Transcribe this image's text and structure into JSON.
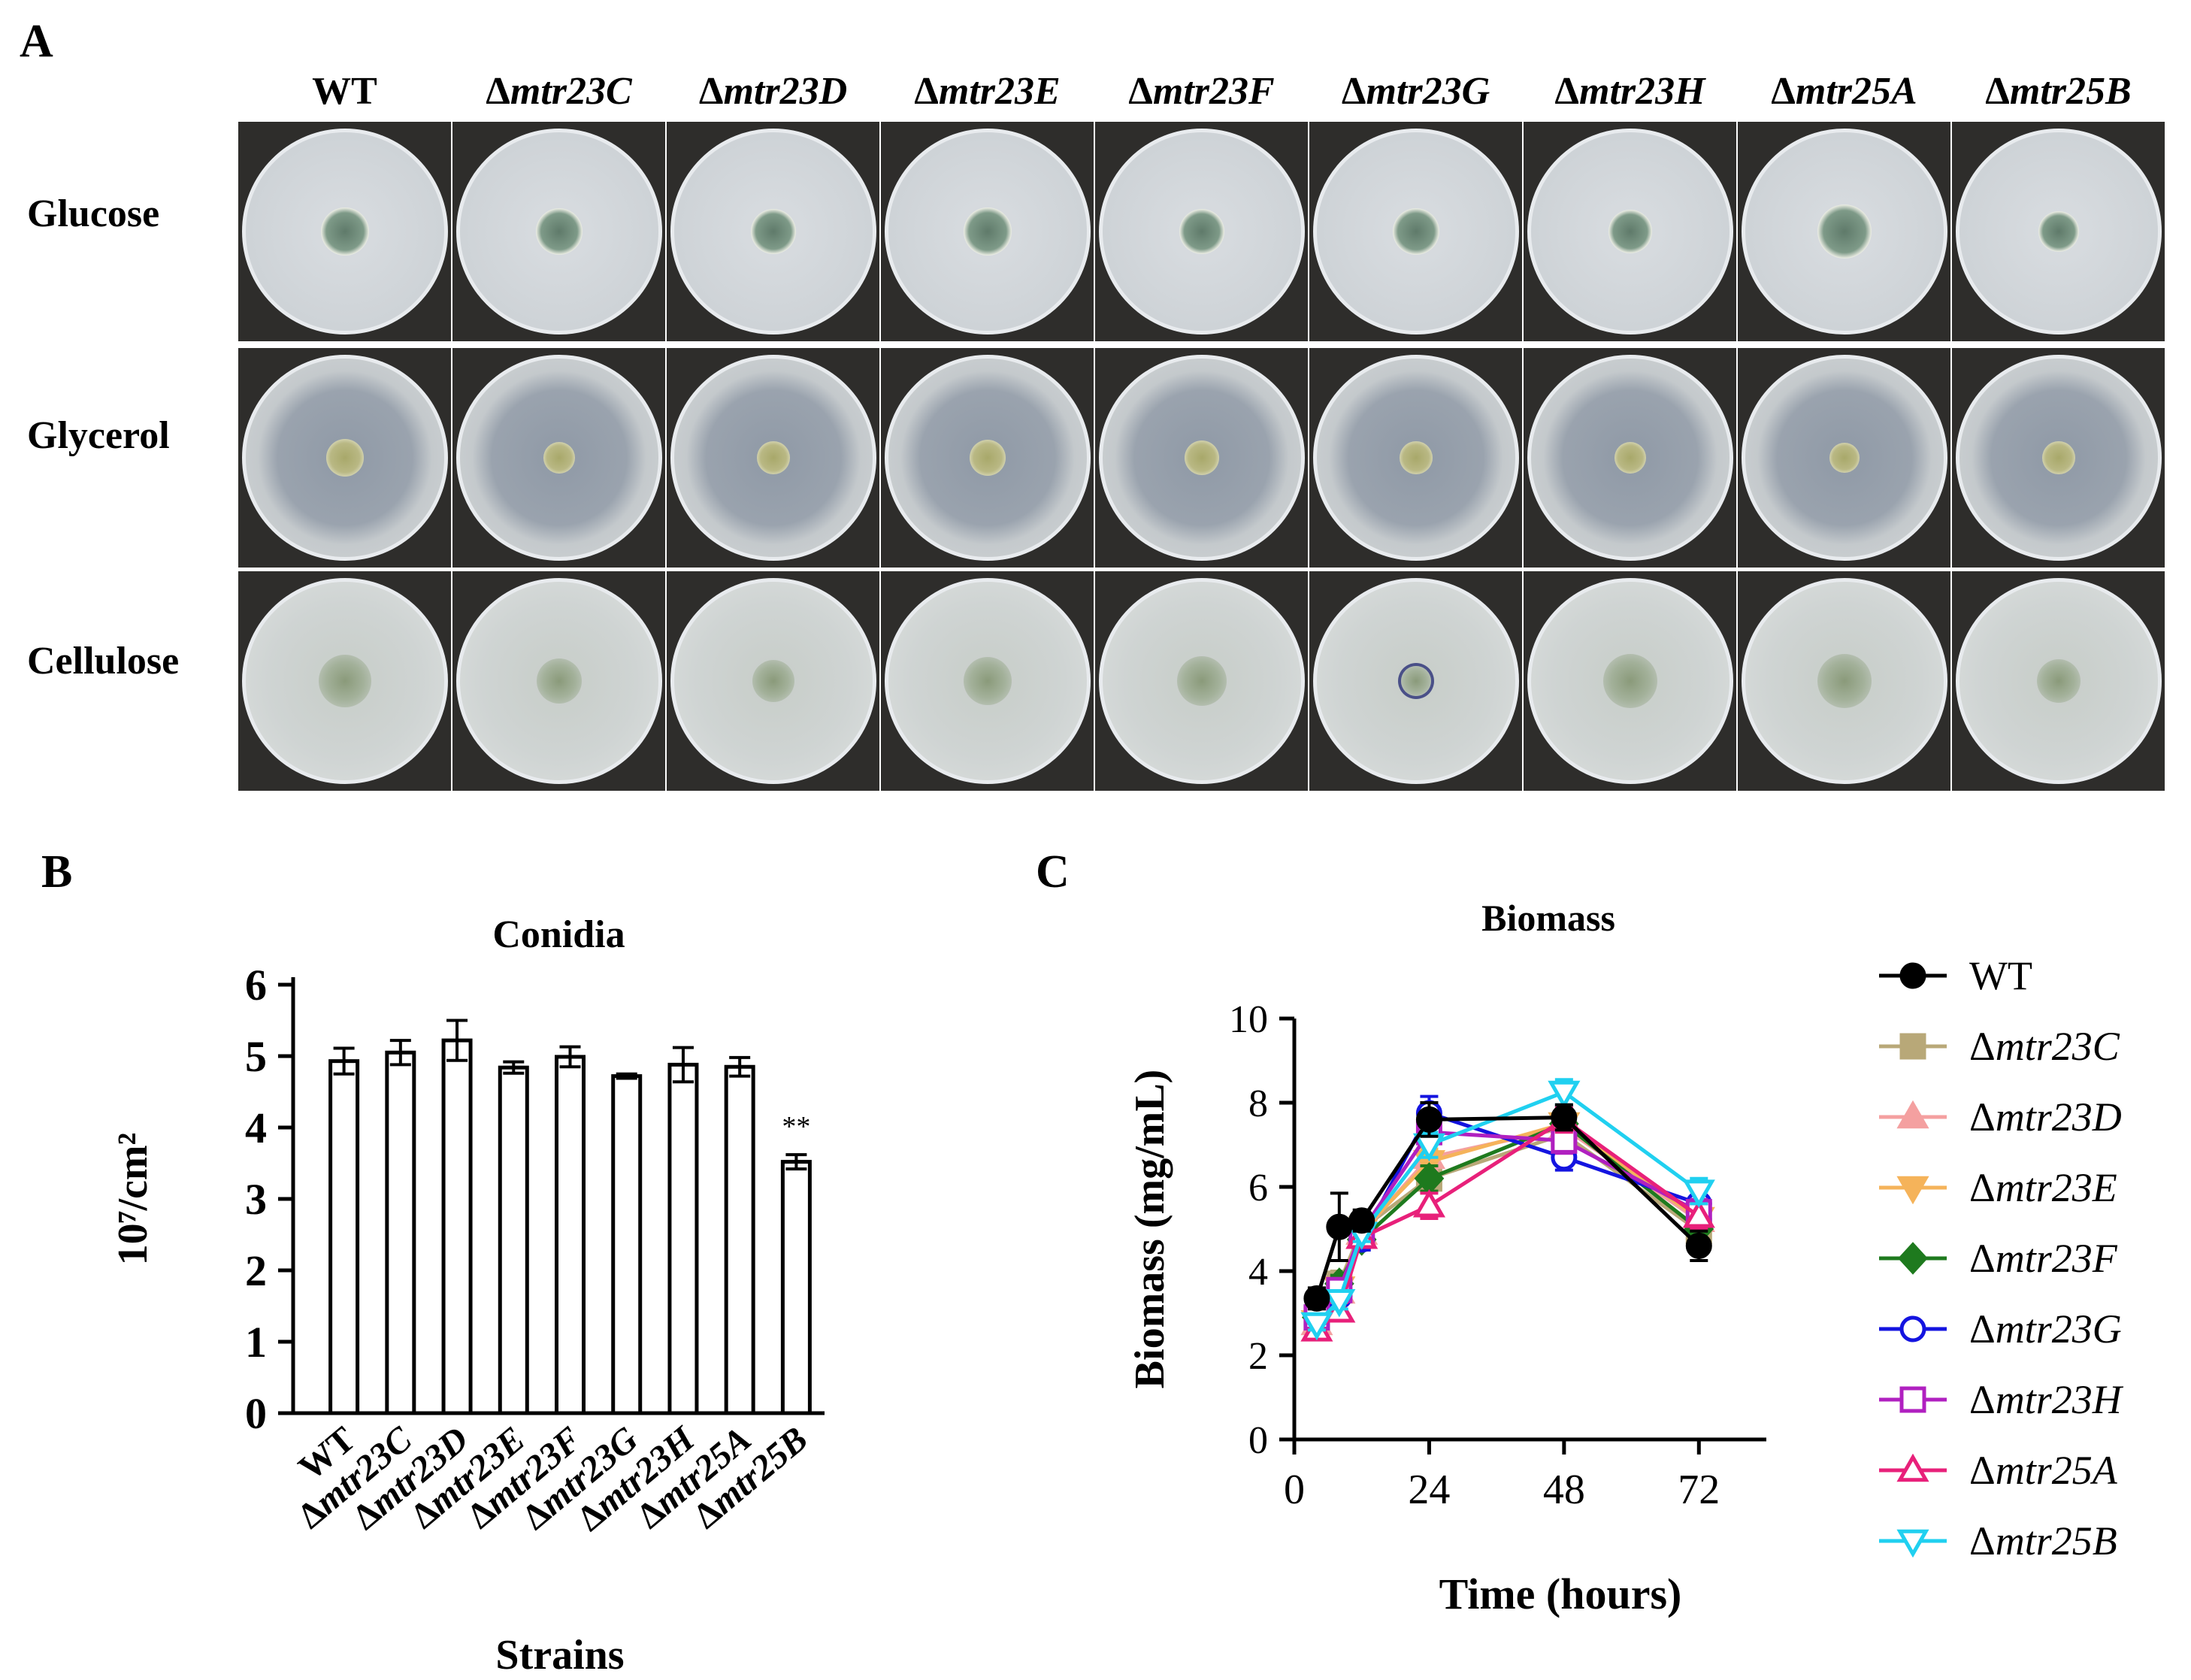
{
  "panels": {
    "a": "A",
    "b": "B",
    "c": "C"
  },
  "strains": [
    "WT",
    "Δmtr23C",
    "Δmtr23D",
    "Δmtr23E",
    "Δmtr23F",
    "Δmtr23G",
    "Δmtr23H",
    "Δmtr25A",
    "Δmtr25B"
  ],
  "media": [
    "Glucose",
    "Glycerol",
    "Cellulose"
  ],
  "colors": {
    "plate_dark": "#2e2d2b",
    "glucose_plate": "#cdd2d6",
    "glycerol_plate": "#9aa3ae",
    "cellulose_plate": "#cfd4d3",
    "colony_green": "#8a9a7a"
  },
  "chart_data": [
    {
      "type": "bar",
      "title": "Conidia",
      "xlabel": "Strains",
      "ylabel": "10⁷/cm²",
      "ylim": [
        0,
        6
      ],
      "yticks": [
        "0",
        "1",
        "2",
        "3",
        "4",
        "5",
        "6"
      ],
      "categories": [
        "WT",
        "Δmtr23C",
        "Δmtr23D",
        "Δmtr23E",
        "Δmtr23F",
        "Δmtr23G",
        "Δmtr23H",
        "Δmtr25A",
        "Δmtr25B"
      ],
      "values": [
        4.93,
        5.05,
        5.22,
        4.84,
        4.99,
        4.72,
        4.88,
        4.85,
        3.52
      ],
      "errors": [
        0.18,
        0.17,
        0.28,
        0.08,
        0.14,
        0.03,
        0.24,
        0.13,
        0.1
      ],
      "annotations": [
        {
          "category": "Δmtr25B",
          "text": "**"
        }
      ]
    },
    {
      "type": "line",
      "title": "Biomass",
      "xlabel": "Time (hours)",
      "ylabel": "Biomass (mg/mL)",
      "xlim": [
        0,
        84
      ],
      "ylim": [
        0,
        10
      ],
      "xticks": [
        "0",
        "24",
        "48",
        "72"
      ],
      "yticks": [
        "0",
        "2",
        "4",
        "6",
        "8",
        "10"
      ],
      "x": [
        4,
        8,
        12,
        24,
        48,
        72
      ],
      "series": [
        {
          "name": "WT",
          "color": "#000000",
          "marker": "circle-filled",
          "values": [
            3.35,
            5.05,
            5.2,
            7.6,
            7.65,
            4.6
          ],
          "errors": [
            0.25,
            0.8,
            0.25,
            0.4,
            0.3,
            0.35
          ]
        },
        {
          "name": "Δmtr23C",
          "color": "#b8a878",
          "marker": "square-filled",
          "values": [
            2.85,
            3.7,
            5.0,
            6.2,
            7.25,
            4.95
          ],
          "errors": [
            0.2,
            0.3,
            0.25,
            0.3,
            0.3,
            0.3
          ]
        },
        {
          "name": "Δmtr23D",
          "color": "#f4a0a0",
          "marker": "triangle-up-filled",
          "values": [
            2.75,
            3.5,
            4.9,
            6.7,
            7.4,
            5.2
          ],
          "errors": [
            0.15,
            0.2,
            0.2,
            0.3,
            0.3,
            0.3
          ]
        },
        {
          "name": "Δmtr23E",
          "color": "#f5b35a",
          "marker": "triangle-down-filled",
          "values": [
            2.8,
            3.6,
            4.95,
            6.6,
            7.5,
            5.25
          ],
          "errors": [
            0.15,
            0.2,
            0.2,
            0.3,
            0.3,
            0.3
          ]
        },
        {
          "name": "Δmtr23F",
          "color": "#1e7a1e",
          "marker": "diamond-filled",
          "values": [
            2.9,
            3.7,
            4.75,
            6.2,
            7.5,
            5.0
          ],
          "errors": [
            0.15,
            0.2,
            0.2,
            0.3,
            0.3,
            0.3
          ]
        },
        {
          "name": "Δmtr23G",
          "color": "#1414e0",
          "marker": "circle-open",
          "values": [
            2.85,
            3.4,
            4.75,
            7.75,
            6.7,
            5.6
          ],
          "errors": [
            0.15,
            0.2,
            0.25,
            0.4,
            0.3,
            0.3
          ]
        },
        {
          "name": "Δmtr23H",
          "color": "#b020c0",
          "marker": "square-open",
          "values": [
            2.9,
            3.55,
            4.95,
            7.3,
            7.1,
            5.4
          ],
          "errors": [
            0.15,
            0.2,
            0.2,
            0.3,
            0.3,
            0.3
          ]
        },
        {
          "name": "Δmtr25A",
          "color": "#e8207a",
          "marker": "triangle-up-open",
          "values": [
            2.6,
            3.05,
            4.8,
            5.55,
            7.6,
            5.3
          ],
          "errors": [
            0.15,
            0.2,
            0.2,
            0.3,
            0.3,
            0.3
          ]
        },
        {
          "name": "Δmtr25B",
          "color": "#20d0f0",
          "marker": "triangle-down-open",
          "values": [
            2.75,
            3.3,
            4.9,
            7.0,
            8.25,
            5.9
          ],
          "errors": [
            0.15,
            0.2,
            0.2,
            0.3,
            0.3,
            0.3
          ]
        }
      ]
    }
  ]
}
